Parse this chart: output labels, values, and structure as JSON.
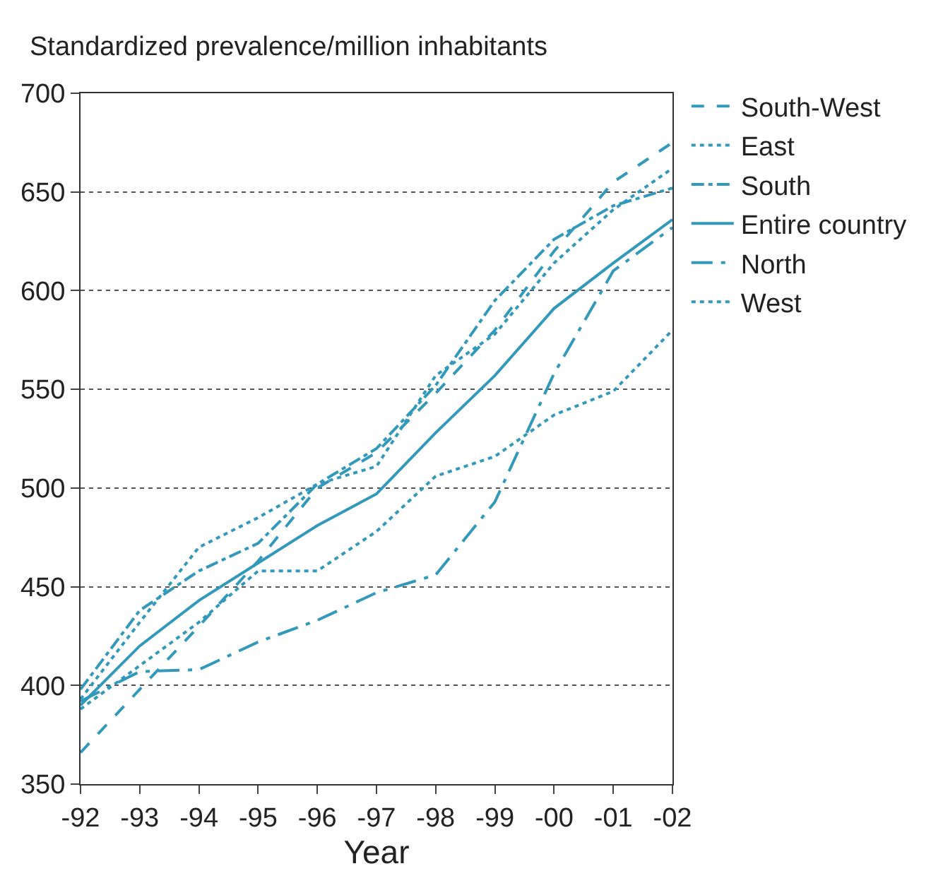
{
  "chart_data": {
    "type": "line",
    "ylabel": "Standardized prevalence/million inhabitants",
    "xlabel": "Year",
    "categories": [
      "-92",
      "-93",
      "-94",
      "-95",
      "-96",
      "-97",
      "-98",
      "-99",
      "-00",
      "-01",
      "-02"
    ],
    "series": [
      {
        "name": "South-West",
        "color": "#3399bb",
        "line_style": "dashed",
        "values": [
          366,
          398,
          430,
          463,
          500,
          518,
          548,
          580,
          620,
          655,
          675
        ]
      },
      {
        "name": "East",
        "color": "#3399bb",
        "line_style": "dotted",
        "values": [
          393,
          432,
          470,
          485,
          502,
          511,
          557,
          578,
          614,
          641,
          662
        ]
      },
      {
        "name": "South",
        "color": "#3399bb",
        "line_style": "dashdot",
        "values": [
          398,
          438,
          458,
          472,
          502,
          520,
          552,
          595,
          626,
          643,
          652
        ]
      },
      {
        "name": "Entire country",
        "color": "#3399bb",
        "line_style": "solid",
        "values": [
          390,
          420,
          443,
          462,
          481,
          497,
          528,
          557,
          591,
          614,
          636
        ]
      },
      {
        "name": "North",
        "color": "#3399bb",
        "line_style": "longdashdot",
        "values": [
          392,
          407,
          408,
          422,
          433,
          447,
          456,
          493,
          558,
          610,
          632
        ]
      },
      {
        "name": "West",
        "color": "#3399bb",
        "line_style": "dotted",
        "values": [
          388,
          410,
          432,
          458,
          458,
          478,
          506,
          516,
          537,
          549,
          580
        ]
      }
    ],
    "ylim": [
      350,
      700
    ],
    "yticks": [
      350,
      400,
      450,
      500,
      550,
      600,
      650,
      700
    ],
    "grid": "y",
    "legend": "right",
    "marker": "none"
  }
}
